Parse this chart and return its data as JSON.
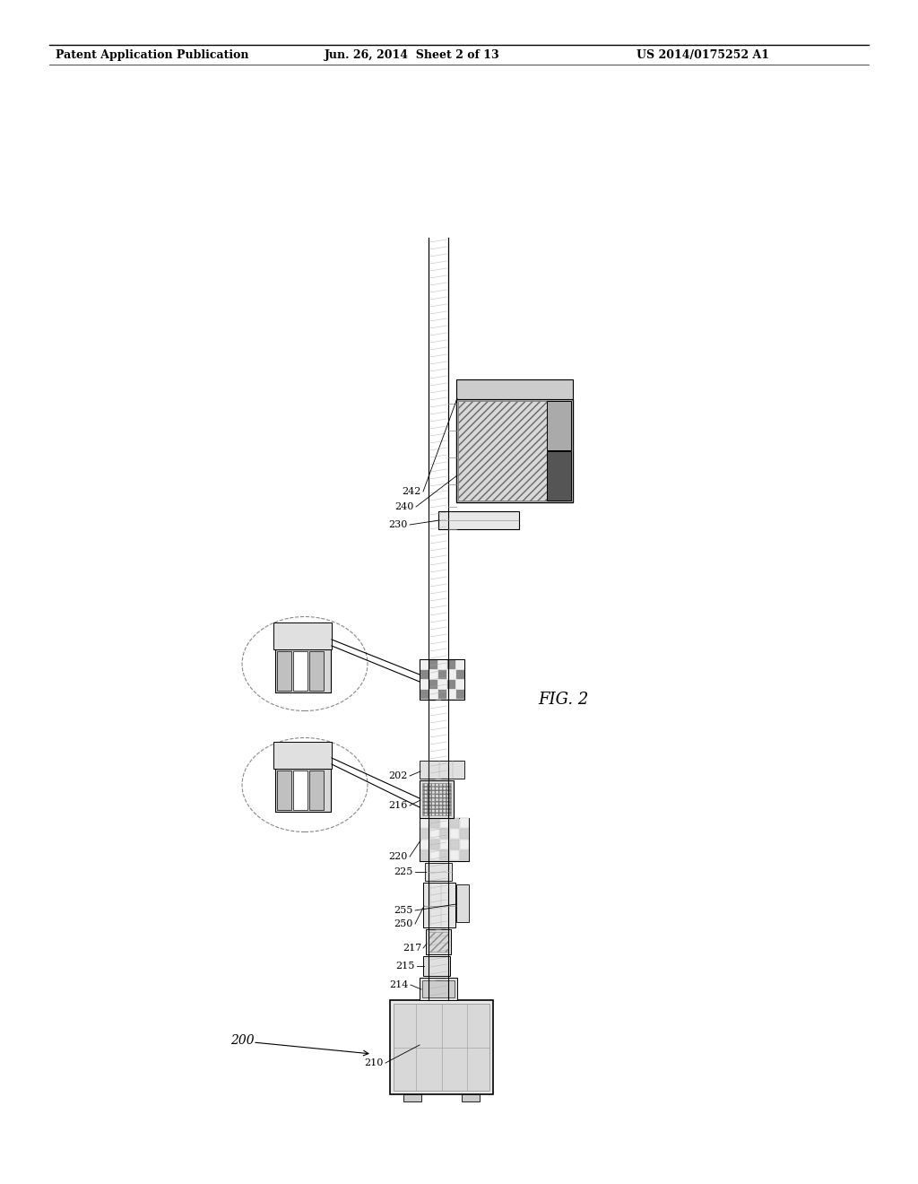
{
  "background": "#ffffff",
  "header_left": "Patent Application Publication",
  "header_mid": "Jun. 26, 2014  Sheet 2 of 13",
  "header_right": "US 2014/0175252 A1",
  "fig_label": "FIG. 2",
  "ref_200": "200",
  "ref_210": "210",
  "ref_214": "214",
  "ref_215": "215",
  "ref_217": "217",
  "ref_250": "250",
  "ref_255": "255",
  "ref_225": "225",
  "ref_220": "220",
  "ref_216": "216",
  "ref_202": "202",
  "ref_230": "230",
  "ref_240": "240",
  "ref_242": "242",
  "header_fontsize": 9,
  "label_fontsize": 8
}
